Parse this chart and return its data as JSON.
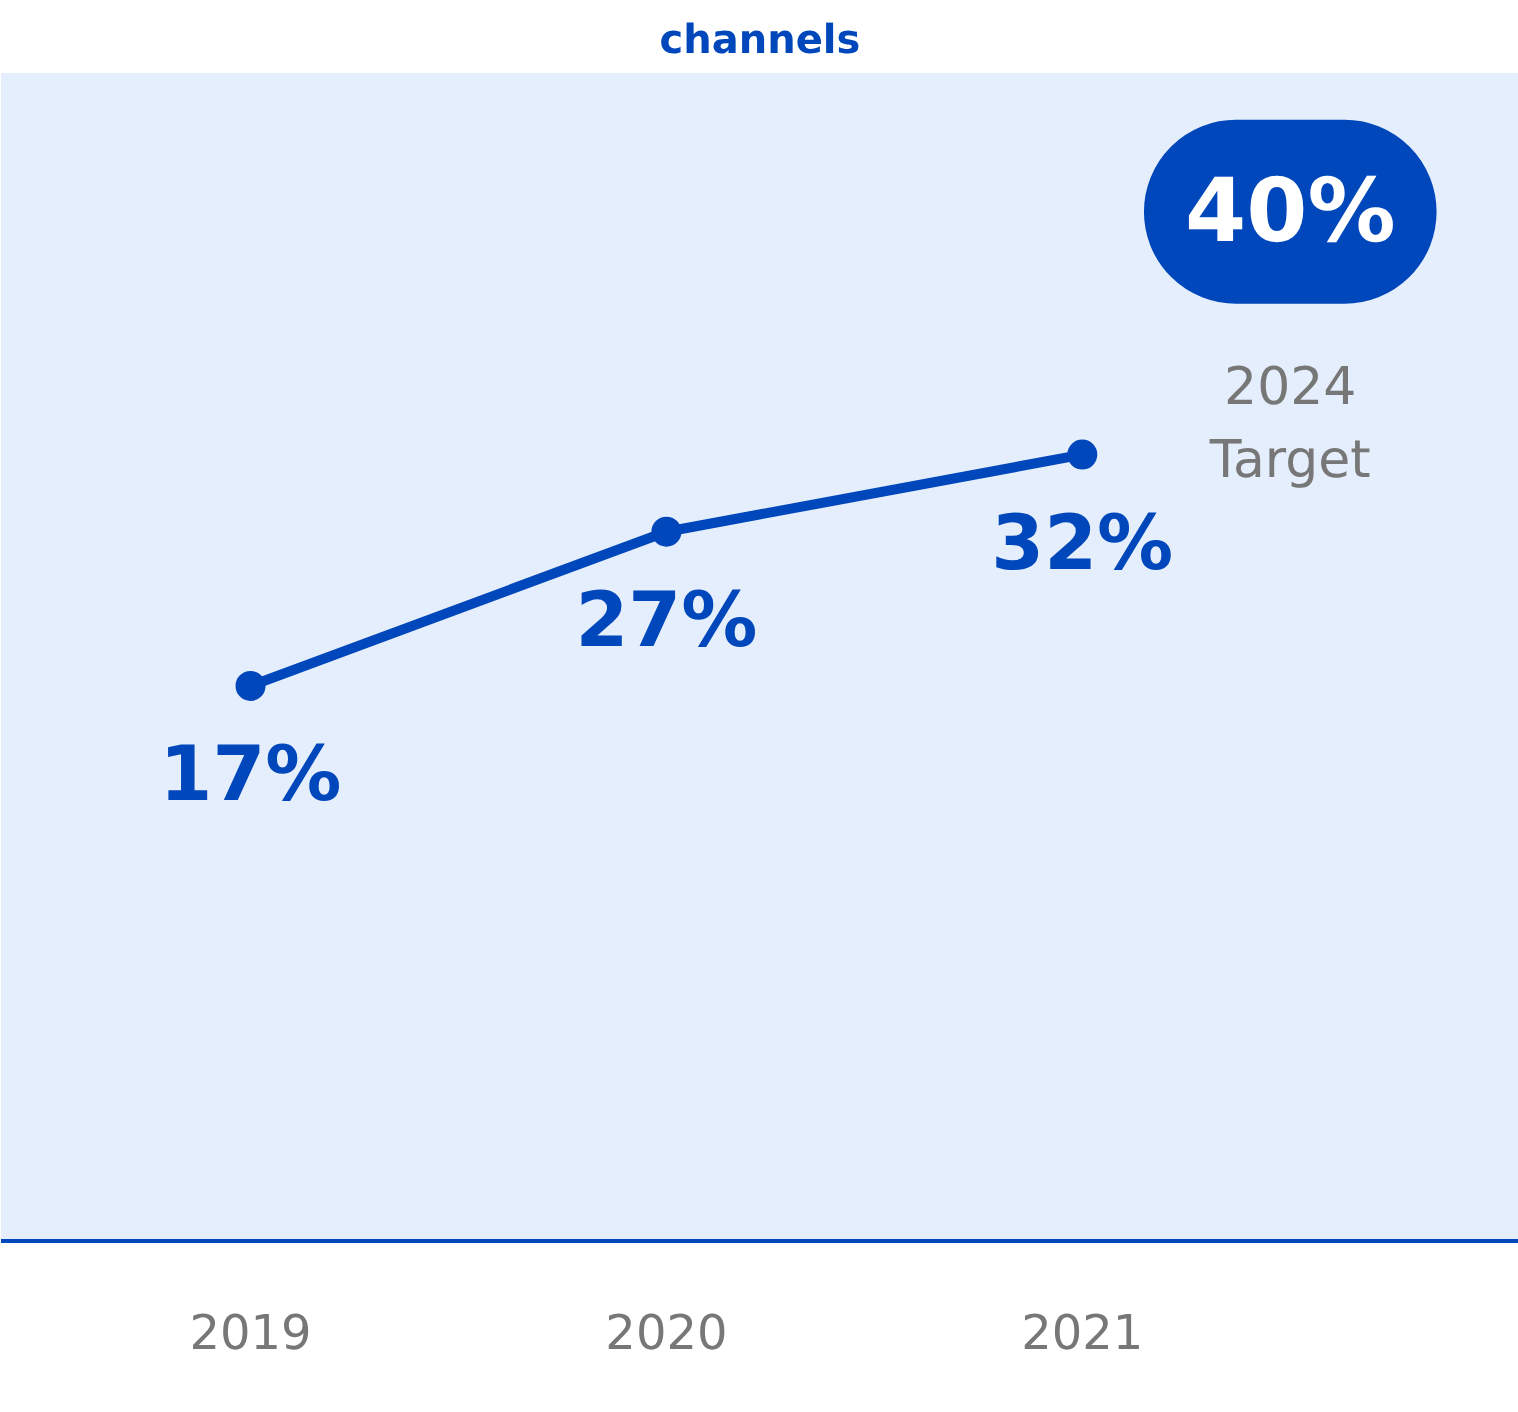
{
  "chart_data": {
    "type": "line",
    "title": "channels",
    "categories": [
      "2019",
      "2020",
      "2021"
    ],
    "series": [
      {
        "color": "#0047bb",
        "values": [
          17,
          27,
          32
        ],
        "value_labels": [
          "17%",
          "27%",
          "32%"
        ]
      }
    ],
    "marker": "circle",
    "grid": false,
    "annotations": [
      "40%",
      "2024 Target"
    ]
  }
}
